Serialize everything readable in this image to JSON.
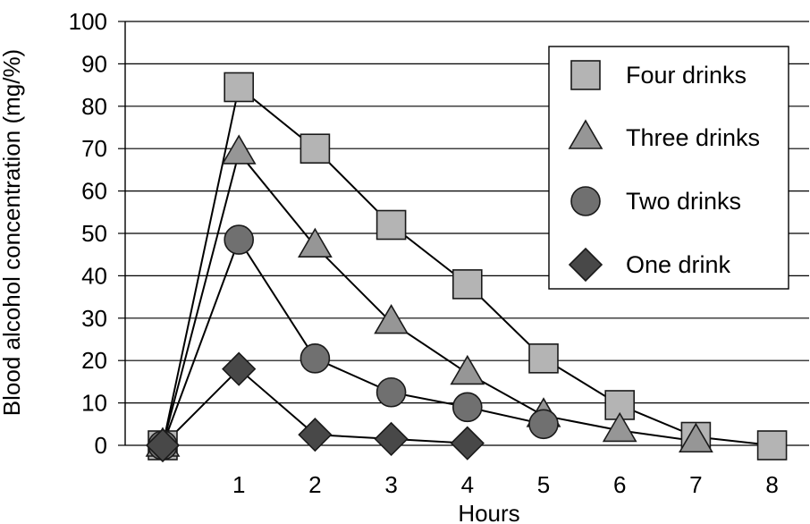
{
  "chart_data": {
    "type": "line",
    "xlabel": "Hours",
    "ylabel": "Blood alcohol concentration (mg/%)",
    "xlim": [
      0,
      8
    ],
    "ylim": [
      0,
      100
    ],
    "x_ticks": [
      "1",
      "2",
      "3",
      "4",
      "5",
      "6",
      "7",
      "8"
    ],
    "y_ticks": [
      "0",
      "10",
      "20",
      "30",
      "40",
      "50",
      "60",
      "70",
      "80",
      "90",
      "100"
    ],
    "grid": "horizontal",
    "legend_position": "top-right",
    "series": [
      {
        "name": "Four drinks",
        "marker": "square",
        "color": "#b4b4b4",
        "points": [
          [
            0,
            0
          ],
          [
            1,
            84.5
          ],
          [
            2,
            70
          ],
          [
            3,
            52
          ],
          [
            4,
            38
          ],
          [
            5,
            20.5
          ],
          [
            6,
            9.5
          ],
          [
            7,
            2
          ],
          [
            8,
            0
          ]
        ]
      },
      {
        "name": "Three drinks",
        "marker": "triangle",
        "color": "#969696",
        "points": [
          [
            0,
            0
          ],
          [
            1,
            69
          ],
          [
            2,
            47
          ],
          [
            3,
            29
          ],
          [
            4,
            17
          ],
          [
            5,
            7
          ],
          [
            6,
            3.5
          ],
          [
            7,
            1
          ]
        ]
      },
      {
        "name": "Two drinks",
        "marker": "circle",
        "color": "#707070",
        "points": [
          [
            0,
            0
          ],
          [
            1,
            48.5
          ],
          [
            2,
            20.5
          ],
          [
            3,
            12.5
          ],
          [
            4,
            9
          ],
          [
            5,
            5
          ]
        ]
      },
      {
        "name": "One drink",
        "marker": "diamond",
        "color": "#484848",
        "points": [
          [
            0,
            0
          ],
          [
            1,
            18
          ],
          [
            2,
            2.5
          ],
          [
            3,
            1.5
          ],
          [
            4,
            0.5
          ]
        ]
      }
    ]
  }
}
